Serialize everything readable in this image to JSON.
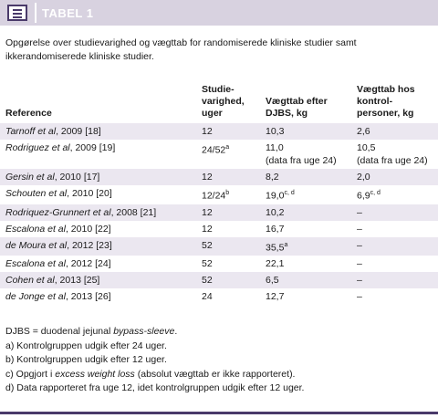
{
  "header": {
    "title": "TABEL 1"
  },
  "caption": "Opgørelse over studievarighed og vægttab for randomiserede kliniske studier samt ikkerandomiserede kliniske studier.",
  "table": {
    "columns": [
      "Reference",
      "Studie-varighed, uger",
      "Vægttab efter DJBS, kg",
      "Vægttab hos kontrol-personer, kg"
    ],
    "rows": [
      {
        "reference": "Tarnoff et al, 2009 [18]",
        "duration": "12",
        "djbs": "10,3",
        "control": "2,6"
      },
      {
        "reference": "Rodriguez et al, 2009 [19]",
        "duration": "24/52",
        "duration_sup": "a",
        "djbs": "11,0",
        "djbs_note": "(data fra uge 24)",
        "control": "10,5",
        "control_note": "(data fra uge 24)"
      },
      {
        "reference": "Gersin et al, 2010 [17]",
        "duration": "12",
        "djbs": "8,2",
        "control": "2,0"
      },
      {
        "reference": "Schouten et al, 2010 [20]",
        "duration": "12/24",
        "duration_sup": "b",
        "djbs": "19,0",
        "djbs_sup": "c, d",
        "control": "6,9",
        "control_sup": "c, d"
      },
      {
        "reference": "Rodriquez-Grunnert et al, 2008 [21]",
        "duration": "12",
        "djbs": "10,2",
        "control": "–"
      },
      {
        "reference": "Escalona et al, 2010 [22]",
        "duration": "12",
        "djbs": "16,7",
        "control": "–"
      },
      {
        "reference": "de Moura et al, 2012 [23]",
        "duration": "52",
        "djbs": "35,5",
        "djbs_sup": "a",
        "control": "–"
      },
      {
        "reference": "Escalona et al, 2012 [24]",
        "duration": "52",
        "djbs": "22,1",
        "control": "–"
      },
      {
        "reference": "Cohen et al, 2013 [25]",
        "duration": "52",
        "djbs": "6,5",
        "control": "–"
      },
      {
        "reference": "de Jonge et al, 2013 [26]",
        "duration": "24",
        "djbs": "12,7",
        "control": "–"
      }
    ]
  },
  "footnotes": [
    [
      {
        "text": "DJBS = duodenal jejunal "
      },
      {
        "text": "bypass-sleeve",
        "italic": true
      },
      {
        "text": "."
      }
    ],
    [
      {
        "text": "a) Kontrolgruppen udgik efter 24 uger."
      }
    ],
    [
      {
        "text": "b) Kontrolgruppen udgik efter 12 uger."
      }
    ],
    [
      {
        "text": "c) Opgjort i "
      },
      {
        "text": "excess weight loss",
        "italic": true
      },
      {
        "text": " (absolut vægttab er ikke rapporteret)."
      }
    ],
    [
      {
        "text": "d) Data rapporteret fra uge 12, idet kontrolgruppen udgik efter 12 uger."
      }
    ]
  ]
}
